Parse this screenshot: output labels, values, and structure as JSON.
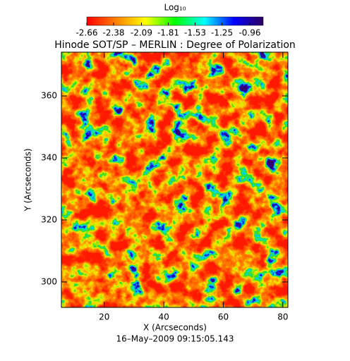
{
  "chart_data": {
    "type": "heatmap",
    "title": "Hinode SOT/SP – MERLIN : Degree of Polarization",
    "x_label": "X (Arcseconds)",
    "y_label": "Y (Arcseconds)",
    "footer": "16–May–2009 09:15:05.143",
    "colorbar_label": "Log₁₀",
    "colorbar_lim": [
      -2.66,
      -0.82
    ],
    "colorbar_ticks": [
      -2.66,
      -2.38,
      -2.09,
      -1.81,
      -1.53,
      -1.25,
      -0.96
    ],
    "colormap": [
      "#ff0000",
      "#ff8000",
      "#ffff00",
      "#00ff00",
      "#00ffff",
      "#0000ff",
      "#300060"
    ],
    "xlim": [
      5.6,
      81.7
    ],
    "xticks": [
      20,
      40,
      60,
      80
    ],
    "ylim": [
      291.8,
      374.1
    ],
    "yticks": [
      300,
      320,
      340,
      360
    ]
  }
}
